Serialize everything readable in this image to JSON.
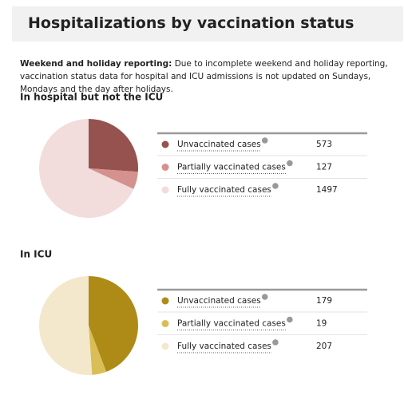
{
  "header": {
    "title": "Hospitalizations by vaccination status"
  },
  "note": {
    "label": "Weekend and holiday reporting:",
    "text": "Due to incomplete weekend and holiday reporting, vaccination status data for hospital and ICU admissions is not updated on Sundays, Mondays and the day after holidays."
  },
  "chart_data": [
    {
      "type": "pie",
      "title": "In hospital but not the ICU",
      "categories": [
        "Unvaccinated cases",
        "Partially vaccinated cases",
        "Fully vaccinated cases"
      ],
      "values": [
        573,
        127,
        1497
      ],
      "colors": [
        "#95524f",
        "#d4918d",
        "#f2dcdc"
      ]
    },
    {
      "type": "pie",
      "title": "In ICU",
      "categories": [
        "Unvaccinated cases",
        "Partially vaccinated cases",
        "Fully vaccinated cases"
      ],
      "values": [
        179,
        19,
        207
      ],
      "colors": [
        "#ae8b16",
        "#d9bd57",
        "#f3e8cb"
      ]
    }
  ]
}
